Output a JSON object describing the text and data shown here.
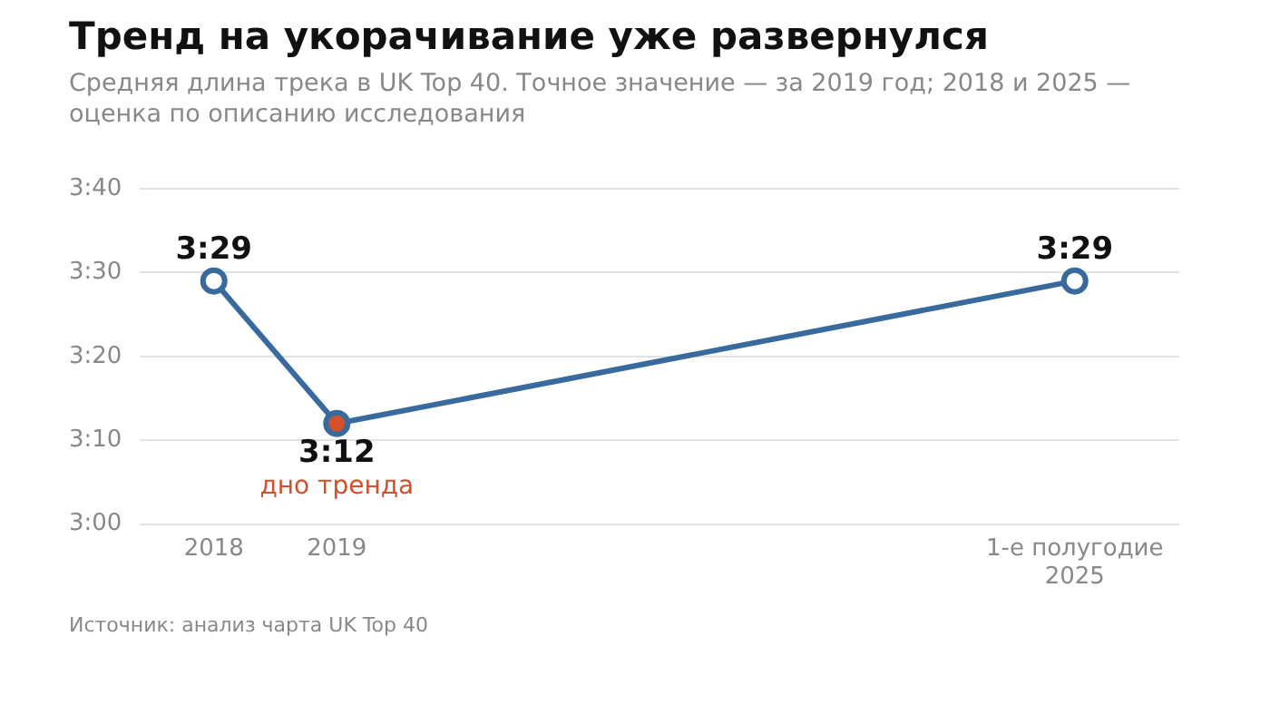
{
  "chart_data": {
    "type": "line",
    "title": "Тренд на укорачивание уже развернулся",
    "subtitle": "Средняя длина трека в UK Top 40. Точное значение — за 2019 год; 2018 и 2025 — оценка по описанию исследования",
    "x": [
      2018,
      2019,
      2025
    ],
    "xlim": [
      2017.4,
      2025.85
    ],
    "xticks": [
      2018,
      2019,
      {
        "value": 2025,
        "label": "1-е полугодие\n2025"
      }
    ],
    "ylim": [
      180,
      220
    ],
    "yticks": [
      {
        "value": 180,
        "label": "3:00"
      },
      {
        "value": 190,
        "label": "3:10"
      },
      {
        "value": 200,
        "label": "3:20"
      },
      {
        "value": 210,
        "label": "3:30"
      },
      {
        "value": 220,
        "label": "3:40"
      }
    ],
    "series": [
      {
        "color": "#386a9e",
        "colors": [
          "#ffffff",
          "#d4502a",
          "#ffffff"
        ],
        "values": [
          209,
          192,
          209
        ],
        "value_labels": [
          "3:29",
          "3:12",
          "3:29"
        ]
      }
    ],
    "annotations": [
      {
        "text": "дно тренда",
        "x": 2019,
        "y": 192
      },
      "Источник: анализ чарта UK Top 40"
    ],
    "grid": "y",
    "legend": false,
    "marker": "circle",
    "line_style": "solid"
  }
}
